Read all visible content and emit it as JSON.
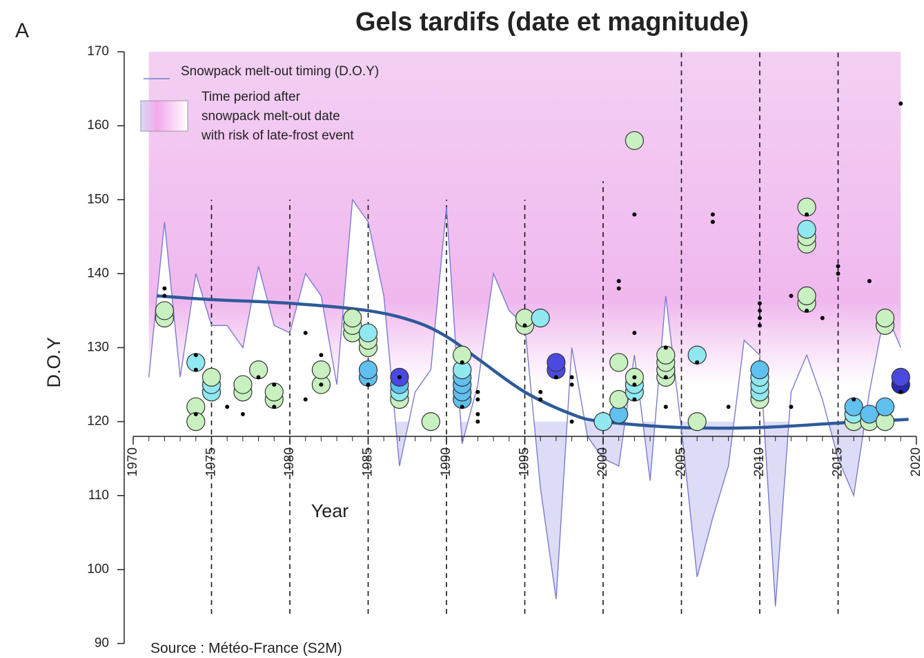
{
  "panel_label": "A",
  "chart_data": {
    "type": "line",
    "title": "Gels tardifs (date et magnitude)",
    "xlabel": "Year",
    "ylabel": "D.O.Y",
    "source": "Source : Météo-France (S2M)",
    "xlim": [
      1970,
      2020
    ],
    "ylim": [
      90,
      170
    ],
    "xticks": [
      1970,
      1975,
      1980,
      1985,
      1990,
      1995,
      2000,
      2005,
      2010,
      2015,
      2020
    ],
    "yticks": [
      90,
      100,
      110,
      120,
      130,
      140,
      150,
      160,
      170
    ],
    "x_axis_at": 118,
    "x_minor_step": 1,
    "vlines": [
      {
        "x": 1975,
        "ylim": [
          94,
          150
        ]
      },
      {
        "x": 1980,
        "ylim": [
          94,
          150
        ]
      },
      {
        "x": 1985,
        "ylim": [
          94,
          150
        ]
      },
      {
        "x": 1990,
        "ylim": [
          94,
          150
        ]
      },
      {
        "x": 1995,
        "ylim": [
          94,
          150
        ]
      },
      {
        "x": 2000,
        "ylim": [
          94,
          152.5
        ]
      },
      {
        "x": 2005,
        "ylim": [
          94,
          170
        ]
      },
      {
        "x": 2010,
        "ylim": [
          94,
          170
        ]
      },
      {
        "x": 2015,
        "ylim": [
          94,
          170
        ]
      }
    ],
    "legend_area": [
      "Time period after",
      "snowpack melt-out date",
      "with risk of late-frost event"
    ],
    "series": [
      {
        "name": "Snowpack melt-out timing (D.O.Y)",
        "color": "#7a7ad0",
        "x": [
          1971,
          1972,
          1973,
          1974,
          1975,
          1976,
          1977,
          1978,
          1979,
          1980,
          1981,
          1982,
          1983,
          1984,
          1985,
          1986,
          1987,
          1988,
          1989,
          1990,
          1991,
          1992,
          1993,
          1994,
          1995,
          1996,
          1997,
          1998,
          1999,
          2000,
          2001,
          2002,
          2003,
          2004,
          2005,
          2006,
          2007,
          2008,
          2009,
          2010,
          2011,
          2012,
          2013,
          2014,
          2015,
          2016,
          2017,
          2018,
          2019
        ],
        "values": [
          126,
          147,
          126,
          140,
          133,
          133,
          130,
          141,
          133,
          132,
          140,
          137,
          125,
          150,
          147,
          137,
          114,
          124,
          127,
          149,
          117,
          125,
          140,
          135,
          133,
          111,
          96,
          130,
          118,
          115,
          114,
          129,
          112,
          137,
          119,
          99,
          107,
          114,
          131,
          129,
          95,
          124,
          129,
          123,
          115,
          110,
          124,
          135,
          130
        ]
      },
      {
        "color": "#2e5a9a",
        "x": [
          1971.5,
          1975,
          1980,
          1985,
          1988,
          1990,
          1992,
          1995,
          1998,
          2000,
          2005,
          2010,
          2015,
          2019.5
        ],
        "values": [
          137,
          136.5,
          136,
          135,
          133.5,
          131.5,
          128.5,
          124,
          121,
          120,
          119.2,
          119.2,
          119.8,
          120.3
        ]
      }
    ],
    "bubbles": {
      "x": [
        1972,
        1972,
        1974,
        1974,
        1974,
        1975,
        1975,
        1975,
        1977,
        1977,
        1978,
        1979,
        1979,
        1982,
        1982,
        1984,
        1984,
        1984,
        1985,
        1985,
        1985,
        1985,
        1985,
        1987,
        1987,
        1987,
        1987,
        1989,
        1991,
        1991,
        1991,
        1991,
        1991,
        1991,
        1995,
        1995,
        1996,
        1997,
        1997,
        2000,
        2001,
        2001,
        2001,
        2002,
        2002,
        2002,
        2002,
        2004,
        2004,
        2004,
        2004,
        2006,
        2006,
        2010,
        2010,
        2010,
        2010,
        2010,
        2013,
        2013,
        2013,
        2013,
        2013,
        2013,
        2016,
        2016,
        2016,
        2017,
        2017,
        2018,
        2018,
        2018,
        2018,
        2019,
        2019
      ],
      "values": [
        134,
        135,
        128,
        122,
        120,
        124,
        125,
        126,
        124,
        125,
        127,
        123,
        124,
        125,
        127,
        132,
        133,
        134,
        126,
        127,
        130,
        131,
        132,
        123,
        124,
        125,
        126,
        120,
        123,
        124,
        125,
        126,
        127,
        129,
        133,
        134,
        134,
        127,
        128,
        120,
        121,
        123,
        128,
        158,
        124,
        125,
        126,
        126,
        127,
        128,
        129,
        129,
        120,
        123,
        124,
        125,
        126,
        127,
        136,
        137,
        144,
        145,
        146,
        149,
        120,
        121,
        122,
        120,
        121,
        120,
        122,
        133,
        134,
        125,
        126
      ],
      "colors": [
        "#c8f0c0",
        "#c8f0c0",
        "#90e8f0",
        "#c8f0c0",
        "#c8f0c0",
        "#90e8f0",
        "#90e8f0",
        "#c8f0c0",
        "#c8f0c0",
        "#c8f0c0",
        "#c8f0c0",
        "#c8f0c0",
        "#c8f0c0",
        "#c8f0c0",
        "#c8f0c0",
        "#c8f0c0",
        "#c8f0c0",
        "#c8f0c0",
        "#60c0f0",
        "#60c0f0",
        "#c8f0c0",
        "#c8f0c0",
        "#90e8f0",
        "#c8f0c0",
        "#90e8f0",
        "#60c0f0",
        "#4a4ae0",
        "#c8f0c0",
        "#60c0f0",
        "#60c0f0",
        "#60c0f0",
        "#60c0f0",
        "#90e8f0",
        "#c8f0c0",
        "#c8f0c0",
        "#c8f0c0",
        "#90e8f0",
        "#4a4ae0",
        "#4a4ae0",
        "#90e8f0",
        "#60c0f0",
        "#c8f0c0",
        "#c8f0c0",
        "#c8f0c0",
        "#90e8f0",
        "#90e8f0",
        "#c8f0c0",
        "#c8f0c0",
        "#c8f0c0",
        "#c8f0c0",
        "#c8f0c0",
        "#90e8f0",
        "#c8f0c0",
        "#c8f0c0",
        "#90e8f0",
        "#90e8f0",
        "#90e8f0",
        "#60c0f0",
        "#c8f0c0",
        "#c8f0c0",
        "#c8f0c0",
        "#c8f0c0",
        "#90e8f0",
        "#c8f0c0",
        "#c8f0c0",
        "#90e8f0",
        "#60c0f0",
        "#c8f0c0",
        "#60c0f0",
        "#c8f0c0",
        "#60c0f0",
        "#c8f0c0",
        "#c8f0c0",
        "#2828b8",
        "#4a4ae0"
      ]
    },
    "dots": {
      "x": [
        1972,
        1972,
        1974,
        1974,
        1974,
        1976,
        1977,
        1978,
        1979,
        1979,
        1981,
        1981,
        1982,
        1982,
        1985,
        1987,
        1991,
        1991,
        1992,
        1992,
        1992,
        1992,
        1995,
        1996,
        1996,
        1997,
        1998,
        1998,
        1998,
        2001,
        2001,
        2002,
        2002,
        2002,
        2002,
        2002,
        2004,
        2004,
        2004,
        2006,
        2007,
        2007,
        2008,
        2010,
        2010,
        2010,
        2010,
        2012,
        2012,
        2013,
        2013,
        2014,
        2015,
        2015,
        2016,
        2017,
        2019,
        2019
      ],
      "values": [
        138,
        137,
        129,
        127,
        121,
        122,
        121,
        126,
        125,
        122,
        132,
        123,
        129,
        125,
        125,
        126,
        128,
        122,
        124,
        123,
        121,
        120,
        133,
        124,
        123,
        126,
        126,
        125,
        120,
        139,
        138,
        148,
        132,
        126,
        125,
        123,
        130,
        126,
        122,
        128,
        148,
        147,
        122,
        136,
        135,
        134,
        133,
        137,
        122,
        148,
        135,
        134,
        141,
        140,
        123,
        139,
        163,
        124
      ]
    }
  }
}
